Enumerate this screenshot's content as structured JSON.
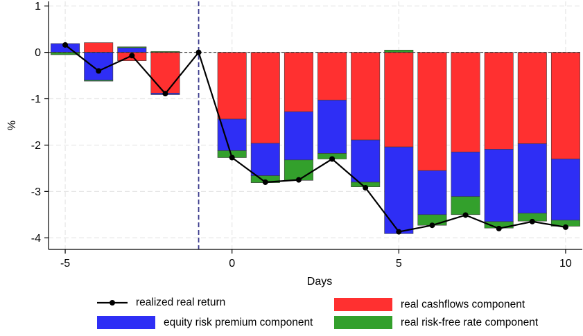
{
  "chart_data": {
    "type": "bar",
    "stacked": true,
    "xlabel": "Days",
    "ylabel": "%",
    "xlim": [
      -5.5,
      10.5
    ],
    "ylim": [
      -4.25,
      1.1
    ],
    "xticks": [
      -5,
      0,
      5,
      10
    ],
    "yticks": [
      1,
      0,
      -1,
      -2,
      -3,
      -4
    ],
    "grid": true,
    "vline_x": -1,
    "legend_position": "bottom",
    "days": [
      -5,
      -4,
      -3,
      -2,
      -1,
      0,
      1,
      2,
      3,
      4,
      5,
      6,
      7,
      8,
      9,
      10
    ],
    "series": [
      {
        "name": "real cashflows component",
        "color": "#ff3030",
        "values": [
          0,
          0.21,
          -0.18,
          -0.88,
          0,
          -1.44,
          -1.96,
          -1.28,
          -1.03,
          -1.89,
          -2.04,
          -2.55,
          -2.15,
          -2.09,
          -1.97,
          -2.3
        ]
      },
      {
        "name": "equity risk premium component",
        "color": "#2e2ef5",
        "values": [
          0.19,
          -0.6,
          0.1,
          -0.03,
          0,
          -0.68,
          -0.7,
          -1.04,
          -1.15,
          -0.91,
          -1.87,
          -0.95,
          -0.96,
          -1.56,
          -1.5,
          -1.32
        ]
      },
      {
        "name": "real risk-free rate component",
        "color": "#33a02c",
        "values": [
          -0.05,
          -0.02,
          0.02,
          0.02,
          0,
          -0.15,
          -0.15,
          -0.44,
          -0.12,
          -0.1,
          0.05,
          -0.23,
          -0.39,
          -0.14,
          -0.17,
          -0.13
        ]
      }
    ],
    "line": {
      "name": "realized real return",
      "color": "#000000",
      "values": [
        0.16,
        -0.4,
        -0.07,
        -0.89,
        0.0,
        -2.27,
        -2.8,
        -2.75,
        -2.3,
        -2.92,
        -3.87,
        -3.73,
        -3.51,
        -3.8,
        -3.65,
        -3.77
      ]
    }
  },
  "legend": {
    "realized": "realized real return",
    "cashflows": "real cashflows component",
    "erp": "equity risk premium component",
    "riskfree": "real risk-free rate component"
  }
}
